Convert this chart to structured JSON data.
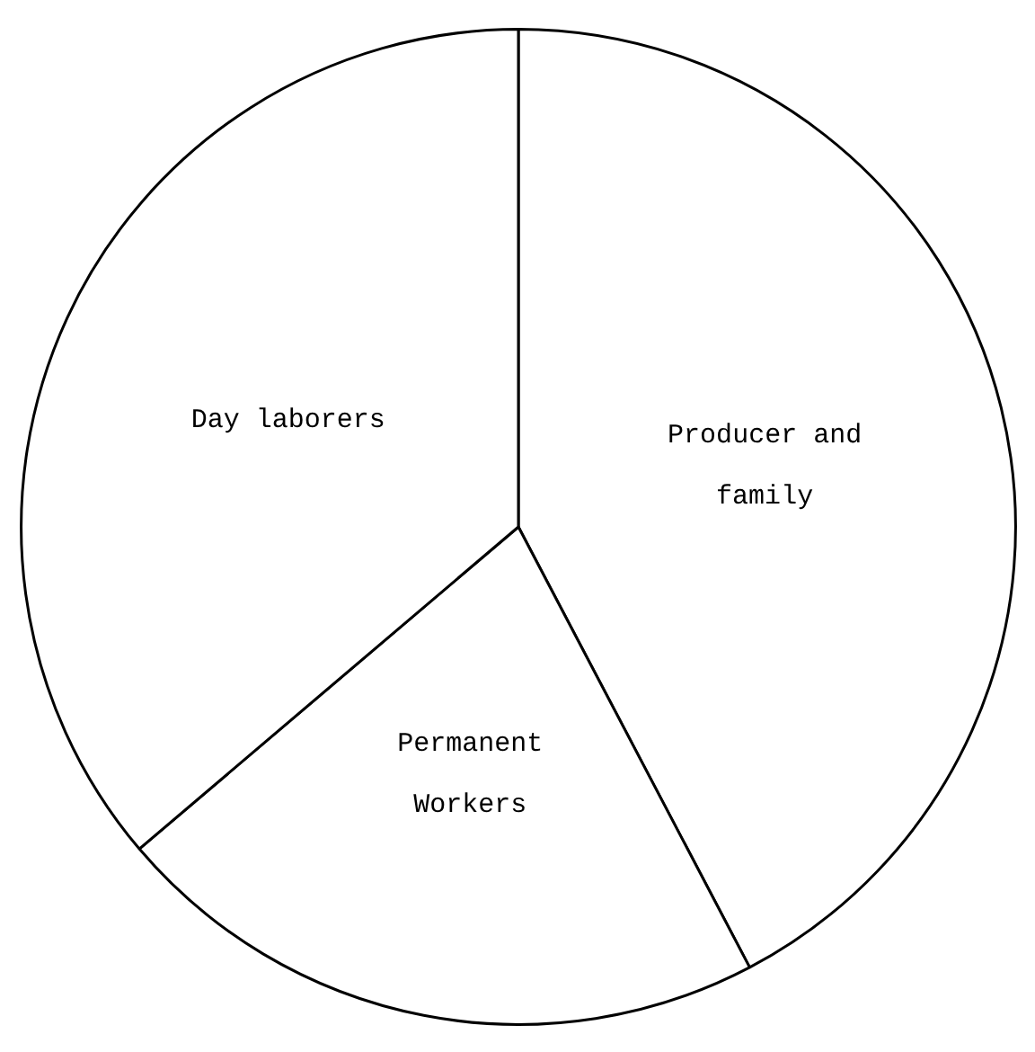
{
  "chart_data": {
    "type": "pie",
    "categories": [
      "Producer and\nfamily",
      "Permanent\nWorkers",
      "Day laborers"
    ],
    "values": [
      42.3,
      21.5,
      36.2
    ],
    "colors": [
      "#ffffff",
      "#ffffff",
      "#ffffff"
    ]
  }
}
